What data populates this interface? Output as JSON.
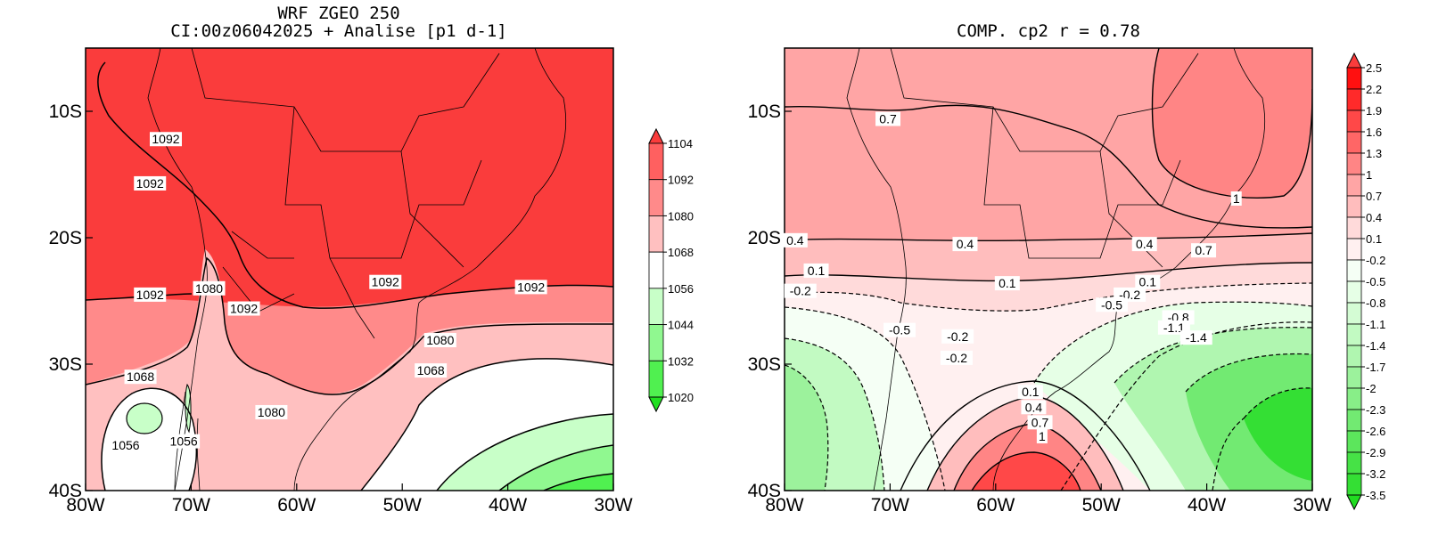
{
  "chart_data": [
    {
      "type": "heatmap",
      "title_line1": "WRF ZGEO 250",
      "title_line2": "CI:00z06042025 + Analise  [p1 d-1]",
      "xlabel": "",
      "ylabel": "",
      "xlim": [
        -80,
        -30
      ],
      "ylim": [
        -40,
        -5
      ],
      "x_ticks": [
        {
          "v": -80,
          "label": "80W"
        },
        {
          "v": -70,
          "label": "70W"
        },
        {
          "v": -60,
          "label": "60W"
        },
        {
          "v": -50,
          "label": "50W"
        },
        {
          "v": -40,
          "label": "40W"
        },
        {
          "v": -30,
          "label": "30W"
        }
      ],
      "y_ticks": [
        {
          "v": -10,
          "label": "10S"
        },
        {
          "v": -20,
          "label": "20S"
        },
        {
          "v": -30,
          "label": "30S"
        },
        {
          "v": -40,
          "label": "40S"
        }
      ],
      "colorbar": {
        "levels": [
          "1104",
          "1092",
          "1080",
          "1068",
          "1056",
          "1044",
          "1032",
          "1020"
        ],
        "colors": [
          "#fa3c3c",
          "#ff6060",
          "#ff8a8a",
          "#ffc0c0",
          "#ffffff",
          "#c8ffc8",
          "#90f890",
          "#50f050",
          "#20e020"
        ]
      },
      "contour_labels": [
        {
          "lon": -72.4,
          "lat": -12.2,
          "text": "1092"
        },
        {
          "lon": -73.9,
          "lat": -15.7,
          "text": "1092"
        },
        {
          "lon": -73.9,
          "lat": -24.5,
          "text": "1092"
        },
        {
          "lon": -68.3,
          "lat": -24.0,
          "text": "1080"
        },
        {
          "lon": -65.0,
          "lat": -25.6,
          "text": "1092"
        },
        {
          "lon": -51.6,
          "lat": -23.5,
          "text": "1092"
        },
        {
          "lon": -37.8,
          "lat": -23.9,
          "text": "1092"
        },
        {
          "lon": -46.4,
          "lat": -28.1,
          "text": "1080"
        },
        {
          "lon": -47.3,
          "lat": -30.5,
          "text": "1068"
        },
        {
          "lon": -74.8,
          "lat": -31.0,
          "text": "1068"
        },
        {
          "lon": -62.4,
          "lat": -33.8,
          "text": "1080"
        },
        {
          "lon": -76.2,
          "lat": -36.4,
          "text": "1056"
        },
        {
          "lon": -70.7,
          "lat": -36.1,
          "text": "1056"
        }
      ]
    },
    {
      "type": "heatmap",
      "title": "COMP. cp2  r =  0.78",
      "xlabel": "",
      "ylabel": "",
      "xlim": [
        -80,
        -30
      ],
      "ylim": [
        -40,
        -5
      ],
      "x_ticks": [
        {
          "v": -80,
          "label": "80W"
        },
        {
          "v": -70,
          "label": "70W"
        },
        {
          "v": -60,
          "label": "60W"
        },
        {
          "v": -50,
          "label": "50W"
        },
        {
          "v": -40,
          "label": "40W"
        },
        {
          "v": -30,
          "label": "30W"
        }
      ],
      "y_ticks": [
        {
          "v": -10,
          "label": "10S"
        },
        {
          "v": -20,
          "label": "20S"
        },
        {
          "v": -30,
          "label": "30S"
        },
        {
          "v": -40,
          "label": "40S"
        }
      ],
      "colorbar": {
        "levels": [
          "2.5",
          "2.2",
          "1.9",
          "1.6",
          "1.3",
          "1",
          "0.7",
          "0.4",
          "0.1",
          "-0.2",
          "-0.5",
          "-0.8",
          "-1.1",
          "-1.4",
          "-1.7",
          "-2",
          "-2.3",
          "-2.6",
          "-2.9",
          "-3.2",
          "-3.5"
        ],
        "colors": [
          "#fa3c3c",
          "#ff1010",
          "#ff2a2a",
          "#ff4848",
          "#ff6666",
          "#ff8585",
          "#ffa5a5",
          "#ffbdbd",
          "#ffdada",
          "#fff0f0",
          "#f5fff5",
          "#e6ffe6",
          "#d4fcd4",
          "#c2fac2",
          "#b0f6b0",
          "#9cf29c",
          "#88ee88",
          "#72ea72",
          "#5ce65c",
          "#46e246",
          "#34df34",
          "#20dc20"
        ]
      },
      "contour_labels": [
        {
          "lon": -70.2,
          "lat": -10.6,
          "text": "0.7"
        },
        {
          "lon": -37.2,
          "lat": -16.9,
          "text": "1"
        },
        {
          "lon": -40.3,
          "lat": -21.0,
          "text": "0.7"
        },
        {
          "lon": -79.0,
          "lat": -20.2,
          "text": "0.4"
        },
        {
          "lon": -62.9,
          "lat": -20.5,
          "text": "0.4"
        },
        {
          "lon": -45.9,
          "lat": -20.5,
          "text": "0.4"
        },
        {
          "lon": -77.0,
          "lat": -22.6,
          "text": "0.1"
        },
        {
          "lon": -58.9,
          "lat": -23.6,
          "text": "0.1"
        },
        {
          "lon": -45.6,
          "lat": -23.5,
          "text": "0.1"
        },
        {
          "lon": -78.5,
          "lat": -24.2,
          "text": "-0.2"
        },
        {
          "lon": -47.3,
          "lat": -24.5,
          "text": "-0.2"
        },
        {
          "lon": -49.0,
          "lat": -25.3,
          "text": "-0.5"
        },
        {
          "lon": -42.7,
          "lat": -26.3,
          "text": "-0.8"
        },
        {
          "lon": -43.1,
          "lat": -27.1,
          "text": "-1.1"
        },
        {
          "lon": -41.0,
          "lat": -27.9,
          "text": "-1.4"
        },
        {
          "lon": -69.1,
          "lat": -27.3,
          "text": "-0.5"
        },
        {
          "lon": -63.6,
          "lat": -27.8,
          "text": "-0.2"
        },
        {
          "lon": -63.7,
          "lat": -29.5,
          "text": "-0.2"
        },
        {
          "lon": -56.7,
          "lat": -32.2,
          "text": "0.1"
        },
        {
          "lon": -56.4,
          "lat": -33.4,
          "text": "0.4"
        },
        {
          "lon": -55.8,
          "lat": -34.6,
          "text": "0.7"
        },
        {
          "lon": -55.6,
          "lat": -35.7,
          "text": "1"
        }
      ]
    }
  ]
}
